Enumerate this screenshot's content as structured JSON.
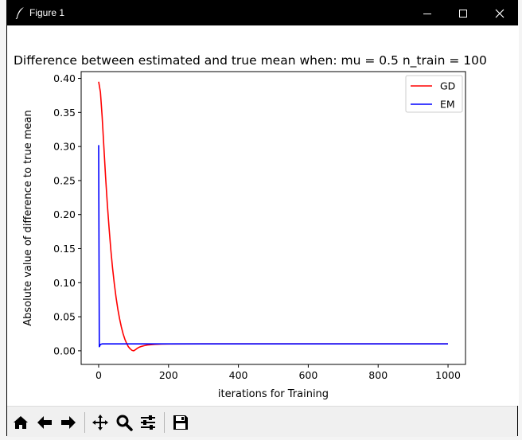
{
  "window": {
    "title": "Figure 1",
    "controls": [
      "minimize-icon",
      "maximize-icon",
      "close-icon"
    ]
  },
  "toolbar": {
    "buttons": [
      {
        "name": "home-icon",
        "label": "Home"
      },
      {
        "name": "back-icon",
        "label": "Back"
      },
      {
        "name": "forward-icon",
        "label": "Forward"
      },
      {
        "name": "pan-icon",
        "label": "Pan"
      },
      {
        "name": "zoom-icon",
        "label": "Zoom"
      },
      {
        "name": "configure-subplots-icon",
        "label": "Configure subplots"
      },
      {
        "name": "save-icon",
        "label": "Save"
      }
    ]
  },
  "chart_data": {
    "type": "line",
    "title": "Difference between estimated and true mean when: mu = 0.5 n_train = 100",
    "xlabel": "iterations for Training",
    "ylabel": "Absolute value of difference to true mean",
    "xlim": [
      -50,
      1050
    ],
    "ylim": [
      -0.02,
      0.41
    ],
    "xticks": [
      0,
      200,
      400,
      600,
      800,
      1000
    ],
    "yticks": [
      0.0,
      0.05,
      0.1,
      0.15,
      0.2,
      0.25,
      0.3,
      0.35,
      0.4
    ],
    "xtick_labels": [
      "0",
      "200",
      "400",
      "600",
      "800",
      "1000"
    ],
    "ytick_labels": [
      "0.00",
      "0.05",
      "0.10",
      "0.15",
      "0.20",
      "0.25",
      "0.30",
      "0.35",
      "0.40"
    ],
    "legend_position": "upper right",
    "grid": false,
    "series": [
      {
        "name": "GD",
        "color": "#ff0000",
        "x": [
          0,
          5,
          10,
          15,
          20,
          25,
          30,
          35,
          40,
          45,
          50,
          55,
          60,
          65,
          70,
          75,
          80,
          85,
          90,
          95,
          100,
          105,
          110,
          115,
          120,
          130,
          140,
          160,
          180,
          200,
          300,
          400,
          600,
          800,
          1000
        ],
        "y": [
          0.395,
          0.38,
          0.345,
          0.3,
          0.255,
          0.215,
          0.18,
          0.148,
          0.121,
          0.098,
          0.078,
          0.061,
          0.047,
          0.035,
          0.025,
          0.017,
          0.011,
          0.006,
          0.003,
          0.0008,
          0.0,
          0.0015,
          0.0035,
          0.005,
          0.006,
          0.0075,
          0.0085,
          0.0095,
          0.0098,
          0.01,
          0.0102,
          0.0102,
          0.0102,
          0.0102,
          0.0102
        ]
      },
      {
        "name": "EM",
        "color": "#0000ff",
        "x": [
          0,
          1,
          2,
          3,
          4,
          6,
          10,
          20,
          50,
          100,
          200,
          400,
          600,
          800,
          1000
        ],
        "y": [
          0.302,
          0.15,
          0.006,
          0.007,
          0.0085,
          0.0095,
          0.0101,
          0.0102,
          0.0102,
          0.0102,
          0.0102,
          0.0102,
          0.0102,
          0.0102,
          0.0102
        ]
      }
    ]
  }
}
